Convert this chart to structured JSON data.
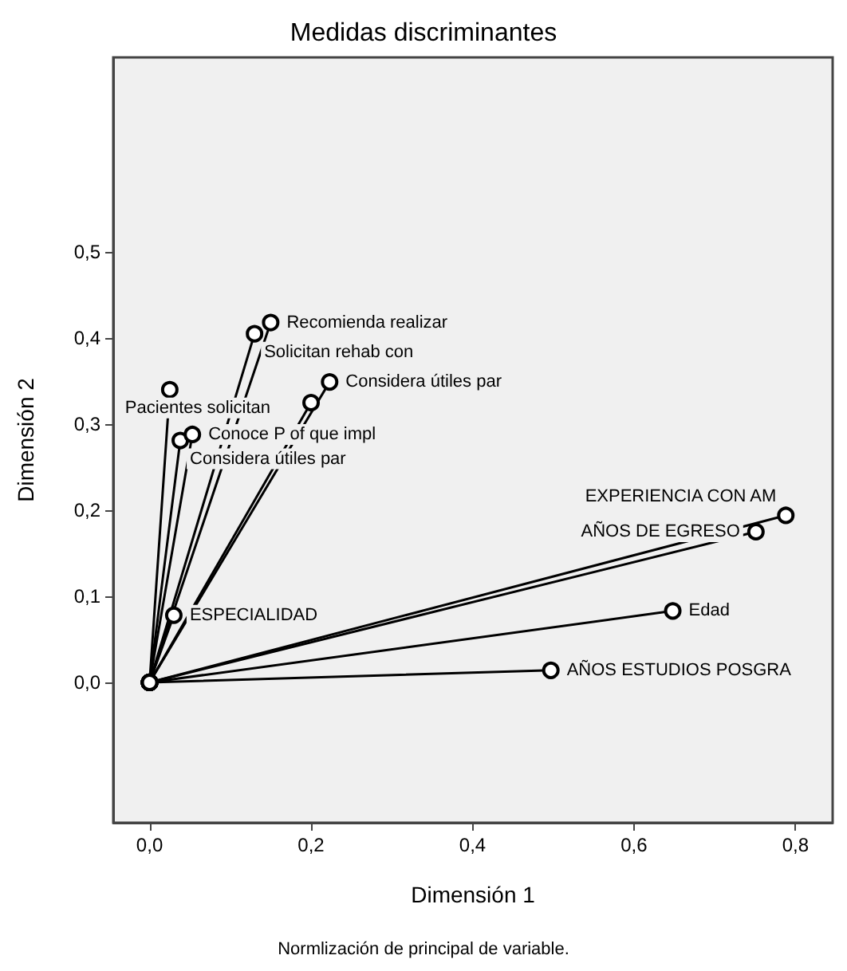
{
  "chart_data": {
    "type": "line",
    "title": "Medidas discriminantes",
    "xlabel": "Dimensión 1",
    "ylabel": "Dimensión 2",
    "annotations": [
      "Normlización de principal de variable."
    ],
    "xlim": [
      -0.045,
      0.846
    ],
    "ylim": [
      -0.163,
      0.726
    ],
    "xticks": [
      {
        "value": 0,
        "label": "0,0"
      },
      {
        "value": 0.2,
        "label": "0,2"
      },
      {
        "value": 0.4,
        "label": "0,4"
      },
      {
        "value": 0.6,
        "label": "0,6"
      },
      {
        "value": 0.8,
        "label": "0,8"
      }
    ],
    "yticks": [
      {
        "value": 0,
        "label": "0,0"
      },
      {
        "value": 0.1,
        "label": "0,1"
      },
      {
        "value": 0.2,
        "label": "0,2"
      },
      {
        "value": 0.3,
        "label": "0,3"
      },
      {
        "value": 0.4,
        "label": "0,4"
      },
      {
        "value": 0.5,
        "label": "0,5"
      }
    ],
    "grid": false,
    "legend": false,
    "marker": "circle",
    "line_style": "solid",
    "series": [
      {
        "name": "Recomienda realizar",
        "color": "#000000",
        "x": [
          0,
          0.15
        ],
        "values": [
          0,
          0.418
        ]
      },
      {
        "name": "Solicitan rehab con",
        "color": "#000000",
        "x": [
          0,
          0.13
        ],
        "values": [
          0,
          0.405
        ]
      },
      {
        "name": "Pacientes solicitan",
        "color": "#000000",
        "x": [
          0,
          0.025
        ],
        "values": [
          0,
          0.34
        ]
      },
      {
        "name": "Considera útiles par",
        "color": "#000000",
        "x": [
          0,
          0.223
        ],
        "values": [
          0,
          0.349
        ]
      },
      {
        "color": "#000000",
        "x": [
          0,
          0.2
        ],
        "values": [
          0,
          0.325
        ]
      },
      {
        "name": "Considera útiles par",
        "color": "#000000",
        "x": [
          0,
          0.038
        ],
        "values": [
          0,
          0.281
        ]
      },
      {
        "name": "Conoce P of que impl",
        "color": "#000000",
        "x": [
          0,
          0.053
        ],
        "values": [
          0,
          0.288
        ]
      },
      {
        "name": "ESPECIALIDAD",
        "color": "#000000",
        "x": [
          0,
          0.03
        ],
        "values": [
          0,
          0.078
        ]
      },
      {
        "name": "EXPERIENCIA CON AM",
        "color": "#000000",
        "x": [
          0,
          0.788
        ],
        "values": [
          0,
          0.194
        ]
      },
      {
        "name": "AÑOS DE EGRESO",
        "color": "#000000",
        "x": [
          0,
          0.751
        ],
        "values": [
          0,
          0.175
        ]
      },
      {
        "name": "Edad",
        "color": "#000000",
        "x": [
          0,
          0.648
        ],
        "values": [
          0,
          0.083
        ]
      },
      {
        "name": "AÑOS ESTUDIOS POSGRA",
        "color": "#000000",
        "x": [
          0,
          0.497
        ],
        "values": [
          0,
          0.014
        ]
      }
    ]
  }
}
